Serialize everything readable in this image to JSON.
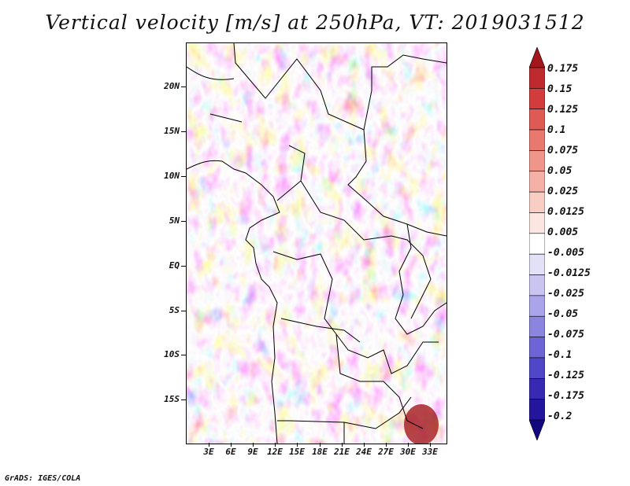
{
  "title": "Vertical velocity [m/s] at 250hPa, VT: 2019031512",
  "footer": "GrADS: IGES/COLA",
  "lat_labels": [
    "20N",
    "15N",
    "10N",
    "5N",
    "EQ",
    "5S",
    "10S",
    "15S"
  ],
  "lon_labels": [
    "3E",
    "6E",
    "9E",
    "12E",
    "15E",
    "18E",
    "21E",
    "24E",
    "27E",
    "30E",
    "33E"
  ],
  "colorbar": {
    "labels": [
      "0.175",
      "0.15",
      "0.125",
      "0.1",
      "0.075",
      "0.05",
      "0.025",
      "0.0125",
      "0.005",
      "-0.005",
      "-0.0125",
      "-0.025",
      "-0.05",
      "-0.075",
      "-0.1",
      "-0.125",
      "-0.175",
      "-0.2"
    ],
    "colors": [
      "#a3161c",
      "#bf2a2e",
      "#d23c3c",
      "#df5a55",
      "#e9786e",
      "#ef958a",
      "#f5b1a6",
      "#f8cdc4",
      "#fbe6e1",
      "#ffffff",
      "#e3e1f5",
      "#c9c5f0",
      "#aaa5ea",
      "#8b85e0",
      "#6d64d6",
      "#5046c8",
      "#3729b3",
      "#23169c",
      "#13077f"
    ]
  },
  "colors": {
    "positive": "#d23c3c",
    "negative": "#5046c8",
    "neutral": "#ffffff"
  }
}
